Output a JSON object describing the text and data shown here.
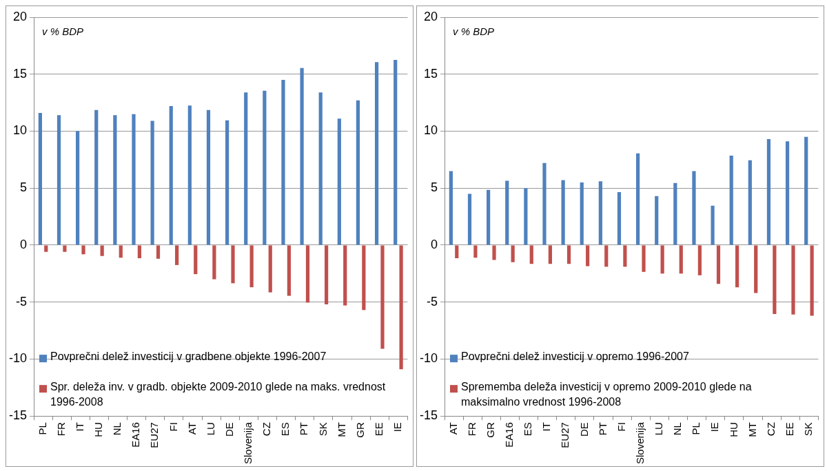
{
  "chart_data": [
    {
      "type": "bar",
      "categories": [
        "PL",
        "FR",
        "IT",
        "HU",
        "NL",
        "EA16",
        "EU27",
        "FI",
        "AT",
        "LU",
        "DE",
        "Slovenija",
        "CZ",
        "ES",
        "PT",
        "SK",
        "MT",
        "GR",
        "EE",
        "IE"
      ],
      "series": [
        {
          "name": "Povprečni delež investicij v gradbene objekte 1996-2007",
          "color": "#4f81bd",
          "values": [
            11.6,
            11.4,
            10.0,
            11.85,
            11.4,
            11.5,
            10.9,
            12.2,
            12.25,
            11.85,
            10.95,
            13.4,
            13.55,
            14.5,
            15.55,
            13.4,
            11.1,
            12.7,
            16.05,
            16.25
          ]
        },
        {
          "name": "Spr. deleža inv. v gradb. objekte 2009-2010 glede na maks. vrednost 1996-2008",
          "color": "#c0504d",
          "values": [
            -0.6,
            -0.6,
            -0.8,
            -0.95,
            -1.1,
            -1.15,
            -1.2,
            -1.75,
            -2.55,
            -3.0,
            -3.35,
            -3.7,
            -4.15,
            -4.45,
            -5.05,
            -5.2,
            -5.3,
            -5.7,
            -9.1,
            -10.9
          ]
        }
      ],
      "ylim": [
        -15,
        20
      ],
      "yticks": [
        -15,
        -10,
        -5,
        0,
        5,
        10,
        15,
        20
      ],
      "grid": "y",
      "legend": "bottom left",
      "annotations": [
        "v % BDP"
      ]
    },
    {
      "type": "bar",
      "categories": [
        "AT",
        "FR",
        "GR",
        "EA16",
        "ES",
        "IT",
        "EU27",
        "DE",
        "PT",
        "FI",
        "Slovenija",
        "LU",
        "NL",
        "PL",
        "IE",
        "HU",
        "MT",
        "CZ",
        "EE",
        "SK"
      ],
      "series": [
        {
          "name": "Povprečni delež investicij v opremo 1996-2007",
          "color": "#4f81bd",
          "values": [
            6.5,
            4.5,
            4.85,
            5.65,
            5.0,
            7.2,
            5.7,
            5.5,
            5.6,
            4.65,
            8.05,
            4.3,
            5.45,
            6.5,
            3.45,
            7.85,
            7.45,
            9.3,
            9.1,
            9.5
          ]
        },
        {
          "name": "Sprememba deleža investicij v opremo 2009-2010 glede na maksimalno vrednost 1996-2008",
          "color": "#c0504d",
          "values": [
            -1.15,
            -1.1,
            -1.3,
            -1.5,
            -1.65,
            -1.65,
            -1.65,
            -1.85,
            -1.9,
            -1.9,
            -2.35,
            -2.5,
            -2.5,
            -2.65,
            -3.4,
            -3.7,
            -4.2,
            -6.05,
            -6.1,
            -6.2
          ]
        }
      ],
      "ylim": [
        -15,
        20
      ],
      "yticks": [
        -15,
        -10,
        -5,
        0,
        5,
        10,
        15,
        20
      ],
      "grid": "y",
      "legend": "bottom left",
      "annotations": [
        "v % BDP"
      ]
    }
  ]
}
